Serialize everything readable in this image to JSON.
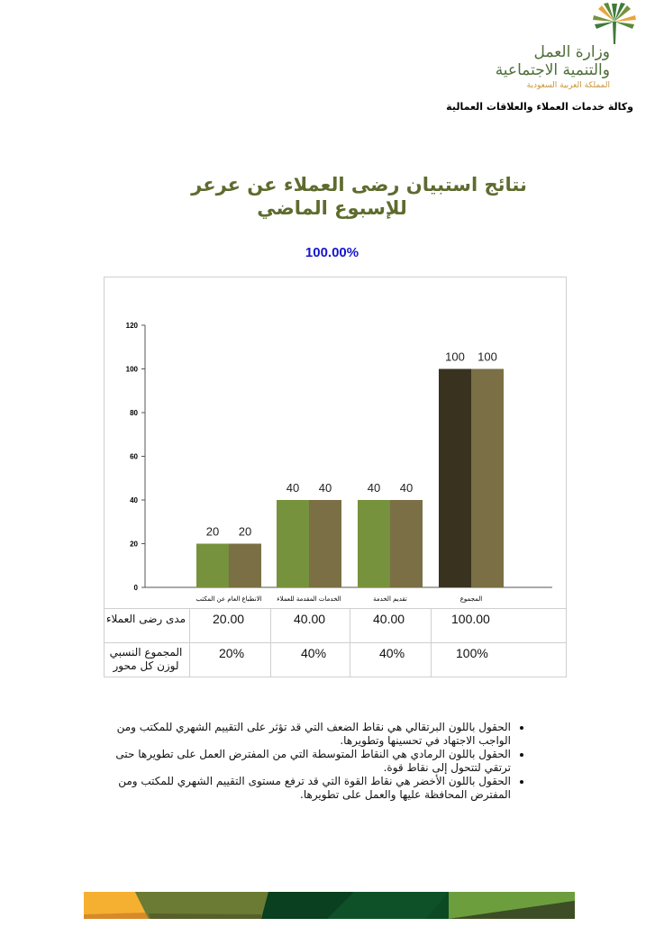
{
  "header": {
    "logo_line1": "وزارة العمل",
    "logo_line2": "والتنمية الاجتماعية",
    "logo_line3": "المملكة العربية السعودية",
    "agency": "وكالة خدمات العملاء والعلاقات العمالية"
  },
  "title_line1": "نتائج استبيان رضى العملاء عن عرعر",
  "title_line2": "للإسبوع الماضي",
  "overall_percent": "100.00%",
  "colors": {
    "green": "#76923c",
    "olive": "#7a6f45",
    "dark": "#38321f",
    "title": "#5e6b2e",
    "percent": "#1515d0"
  },
  "chart_data": {
    "type": "bar",
    "categories": [
      "الانطباع العام عن المكتب",
      "الخدمات المقدمة للعملاء",
      "تقديم الخدمة",
      "المجموع"
    ],
    "series": [
      {
        "values": [
          20,
          40,
          40,
          100
        ]
      },
      {
        "values": [
          20,
          40,
          40,
          100
        ]
      }
    ],
    "data_labels": [
      "20",
      "20",
      "40",
      "40",
      "40",
      "40",
      "100",
      "100"
    ],
    "yticks": [
      "0",
      "20",
      "40",
      "60",
      "80",
      "100",
      "120"
    ],
    "ylim": [
      0,
      120
    ],
    "grid": false,
    "legend": "none"
  },
  "table": {
    "rows": [
      {
        "label": "مدى رضى العملاء",
        "values": [
          "20.00",
          "40.00",
          "40.00",
          "100.00"
        ]
      },
      {
        "label": "المجموع النسبي لوزن كل محور",
        "values": [
          "20%",
          "40%",
          "40%",
          "100%"
        ]
      }
    ]
  },
  "notes": [
    "الحقول باللون البرتقالي هي نقاط الضعف التي قد تؤثر على التقييم الشهري للمكتب ومن الواجب الاجتهاد في تحسينها وتطويرها.",
    "الحقول باللون الرمادي هي النقاط المتوسطة التي من المفترض العمل على تطويرها حتى ترتقي لتتحول إلى نقاط قوة.",
    "الحقول باللون الأخضر هي نقاط القوة التي قد ترفع مستوى التقييم الشهري للمكتب ومن المفترض المحافظة عليها والعمل على تطويرها."
  ]
}
